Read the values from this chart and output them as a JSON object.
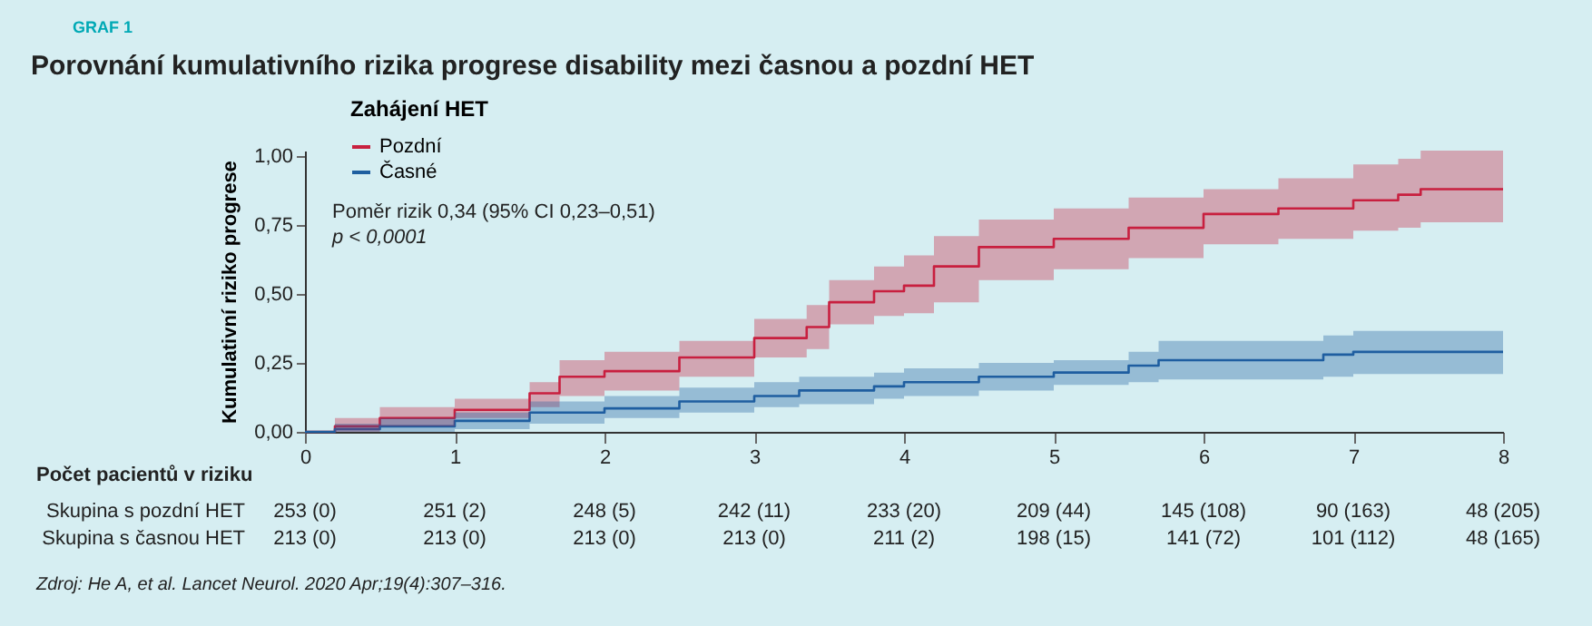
{
  "chart_data": {
    "type": "step",
    "title": "Porovnání kumulativního rizika progrese disability mezi časnou a pozdní HET",
    "ylabel": "Kumulativní riziko progrese",
    "legend_title": "Zahájení HET",
    "legend": "top left",
    "xlim": [
      0,
      8
    ],
    "xticks": [
      0,
      1,
      2,
      3,
      4,
      5,
      6,
      7,
      8
    ],
    "ylim": [
      0,
      1.02
    ],
    "yticks": [
      {
        "value": 0,
        "label": "0,00"
      },
      {
        "value": 0.25,
        "label": "0,25"
      },
      {
        "value": 0.5,
        "label": "0,50"
      },
      {
        "value": 0.75,
        "label": "0,75"
      },
      {
        "value": 1,
        "label": "1,00"
      }
    ],
    "grid": false,
    "series": [
      {
        "name": "Pozdní",
        "color": "#c8203f",
        "x": [
          0,
          0.2,
          0.5,
          1,
          1.5,
          1.7,
          2,
          2.5,
          3,
          3.35,
          3.5,
          3.8,
          4,
          4.2,
          4.5,
          5,
          5.5,
          6,
          6.5,
          7,
          7.3,
          7.45,
          8
        ],
        "values": [
          0,
          0.02,
          0.05,
          0.08,
          0.14,
          0.2,
          0.22,
          0.27,
          0.34,
          0.38,
          0.47,
          0.51,
          0.53,
          0.6,
          0.67,
          0.7,
          0.74,
          0.79,
          0.81,
          0.84,
          0.86,
          0.88,
          0.88
        ],
        "lower": [
          0,
          0,
          0.02,
          0.05,
          0.09,
          0.13,
          0.15,
          0.2,
          0.27,
          0.3,
          0.39,
          0.42,
          0.43,
          0.47,
          0.55,
          0.59,
          0.63,
          0.68,
          0.7,
          0.73,
          0.74,
          0.76,
          0.76
        ],
        "upper": [
          0,
          0.05,
          0.09,
          0.12,
          0.18,
          0.26,
          0.29,
          0.33,
          0.41,
          0.46,
          0.55,
          0.6,
          0.64,
          0.71,
          0.77,
          0.81,
          0.85,
          0.88,
          0.92,
          0.97,
          0.99,
          1.02,
          1.02
        ]
      },
      {
        "name": "Časné",
        "color": "#1f5fa0",
        "x": [
          0,
          0.2,
          0.5,
          1,
          1.5,
          2,
          2.5,
          3,
          3.3,
          3.8,
          4,
          4.5,
          5,
          5.5,
          5.7,
          6.5,
          6.8,
          7,
          8
        ],
        "values": [
          0,
          0.01,
          0.02,
          0.04,
          0.07,
          0.085,
          0.11,
          0.13,
          0.15,
          0.165,
          0.18,
          0.2,
          0.215,
          0.24,
          0.26,
          0.26,
          0.28,
          0.29,
          0.29
        ],
        "lower": [
          0,
          0,
          0,
          0.01,
          0.03,
          0.05,
          0.07,
          0.09,
          0.1,
          0.12,
          0.13,
          0.15,
          0.17,
          0.18,
          0.19,
          0.19,
          0.2,
          0.21,
          0.21
        ],
        "upper": [
          0,
          0.03,
          0.05,
          0.07,
          0.11,
          0.13,
          0.16,
          0.18,
          0.2,
          0.215,
          0.23,
          0.25,
          0.26,
          0.29,
          0.33,
          0.33,
          0.35,
          0.366,
          0.366
        ]
      }
    ],
    "annotations": [
      "GRAF 1",
      "Poměr rizik 0,34 (95% CI 0,23–0,51)",
      "p < 0,0001",
      "Počet pacientů v riziku",
      "Skupina s pozdní HET",
      "253 (0)",
      "251 (2)",
      "248 (5)",
      "242 (11)",
      "233 (20)",
      "209 (44)",
      "145 (108)",
      "90 (163)",
      "48 (205)",
      "Skupina s časnou HET",
      "213 (0)",
      "213 (0)",
      "213 (0)",
      "213 (0)",
      "211 (2)",
      "198 (15)",
      "141 (72)",
      "101 (112)",
      "48 (165)",
      "Zdroj: He A, et al. Lancet Neurol. 2020 Apr;19(4):307–316."
    ]
  }
}
